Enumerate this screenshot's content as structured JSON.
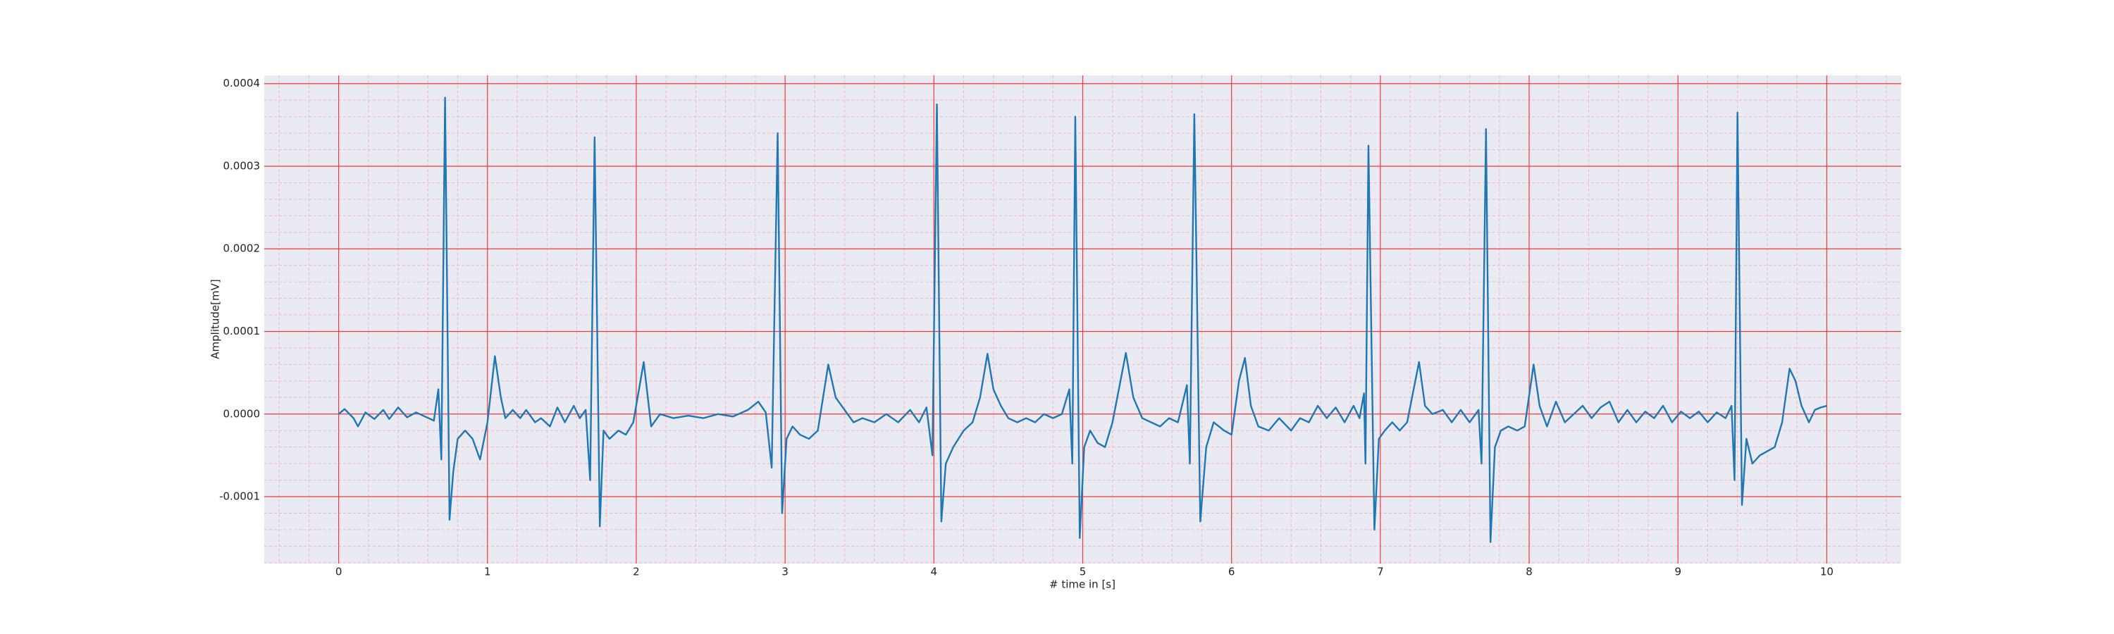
{
  "chart_data": {
    "type": "line",
    "x_label": "# time in [s]",
    "y_label": "Amplitude[mV]",
    "xlim": [
      -0.5,
      10.5
    ],
    "ylim": [
      -0.000181,
      0.00041
    ],
    "xticks": [
      0,
      1,
      2,
      3,
      4,
      5,
      6,
      7,
      8,
      9,
      10
    ],
    "yticks": [
      {
        "value": -0.0001,
        "label": "-0.0001"
      },
      {
        "value": 0,
        "label": "0.0000"
      },
      0.0001,
      0.0002,
      0.0003,
      0.0004
    ],
    "grid": true,
    "minor_grid": true,
    "background": "#eaeaf2",
    "grid_color": "#f03a3a",
    "minor_grid_color": "#f7b3c2",
    "x": [
      0,
      0.04,
      0.1,
      0.13,
      0.18,
      0.24,
      0.3,
      0.34,
      0.4,
      0.46,
      0.52,
      0.58,
      0.64,
      0.67,
      0.69,
      0.715,
      0.745,
      0.77,
      0.8,
      0.85,
      0.9,
      0.95,
      1.0,
      1.05,
      1.09,
      1.12,
      1.17,
      1.22,
      1.26,
      1.32,
      1.36,
      1.42,
      1.47,
      1.52,
      1.58,
      1.62,
      1.66,
      1.69,
      1.72,
      1.755,
      1.78,
      1.82,
      1.88,
      1.93,
      1.98,
      2.05,
      2.1,
      2.16,
      2.25,
      2.35,
      2.45,
      2.55,
      2.65,
      2.75,
      2.82,
      2.87,
      2.91,
      2.95,
      2.98,
      3.01,
      3.05,
      3.1,
      3.16,
      3.22,
      3.29,
      3.34,
      3.4,
      3.46,
      3.52,
      3.6,
      3.68,
      3.76,
      3.84,
      3.9,
      3.95,
      3.99,
      4.02,
      4.05,
      4.08,
      4.13,
      4.2,
      4.26,
      4.31,
      4.36,
      4.4,
      4.45,
      4.5,
      4.56,
      4.62,
      4.68,
      4.74,
      4.8,
      4.86,
      4.91,
      4.93,
      4.95,
      4.98,
      5.01,
      5.05,
      5.1,
      5.15,
      5.2,
      5.29,
      5.34,
      5.4,
      5.46,
      5.52,
      5.58,
      5.64,
      5.7,
      5.72,
      5.75,
      5.79,
      5.83,
      5.88,
      5.95,
      6.0,
      6.05,
      6.09,
      6.13,
      6.18,
      6.25,
      6.32,
      6.4,
      6.46,
      6.52,
      6.58,
      6.64,
      6.7,
      6.76,
      6.82,
      6.86,
      6.89,
      6.9,
      6.92,
      6.96,
      6.99,
      7.03,
      7.08,
      7.13,
      7.18,
      7.26,
      7.3,
      7.35,
      7.42,
      7.48,
      7.54,
      7.6,
      7.66,
      7.68,
      7.71,
      7.74,
      7.77,
      7.81,
      7.86,
      7.92,
      7.97,
      8.03,
      8.07,
      8.12,
      8.18,
      8.24,
      8.3,
      8.36,
      8.42,
      8.48,
      8.54,
      8.6,
      8.66,
      8.72,
      8.78,
      8.84,
      8.9,
      8.96,
      9.02,
      9.08,
      9.14,
      9.2,
      9.26,
      9.32,
      9.36,
      9.38,
      9.4,
      9.43,
      9.46,
      9.5,
      9.55,
      9.6,
      9.65,
      9.7,
      9.75,
      9.79,
      9.83,
      9.88,
      9.92,
      9.96,
      10.0
    ],
    "series": [
      {
        "color": "#1f77b4",
        "values": [
          0,
          6e-06,
          -5e-06,
          -1.5e-05,
          2e-06,
          -6e-06,
          5e-06,
          -6e-06,
          8e-06,
          -4e-06,
          2e-06,
          -3e-06,
          -8e-06,
          3e-05,
          -5.5e-05,
          0.000383,
          -0.000128,
          -7e-05,
          -3e-05,
          -2e-05,
          -3e-05,
          -5.5e-05,
          -1e-05,
          7e-05,
          2e-05,
          -5e-06,
          5e-06,
          -5e-06,
          5e-06,
          -1e-05,
          -5e-06,
          -1.5e-05,
          8e-06,
          -1e-05,
          1e-05,
          -5e-06,
          5e-06,
          -8e-05,
          0.000335,
          -0.000136,
          -2e-05,
          -3e-05,
          -2e-05,
          -2.5e-05,
          -1e-05,
          6.3e-05,
          -1.5e-05,
          0,
          -5e-06,
          -2e-06,
          -5e-06,
          0,
          -3e-06,
          5e-06,
          1.5e-05,
          2e-06,
          -6.5e-05,
          0.00034,
          -0.00012,
          -3e-05,
          -1.5e-05,
          -2.5e-05,
          -3e-05,
          -2e-05,
          6e-05,
          2e-05,
          5e-06,
          -1e-05,
          -5e-06,
          -1e-05,
          0,
          -1e-05,
          5e-06,
          -1e-05,
          8e-06,
          -5e-05,
          0.000375,
          -0.00013,
          -6e-05,
          -4e-05,
          -2e-05,
          -1e-05,
          2e-05,
          7.3e-05,
          3e-05,
          1e-05,
          -5e-06,
          -1e-05,
          -5e-06,
          -1e-05,
          0,
          -5e-06,
          0,
          3e-05,
          -6e-05,
          0.00036,
          -0.00015,
          -4e-05,
          -2e-05,
          -3.5e-05,
          -4e-05,
          -1e-05,
          7.4e-05,
          2e-05,
          -5e-06,
          -1e-05,
          -1.5e-05,
          -5e-06,
          -1e-05,
          3.5e-05,
          -6e-05,
          0.000363,
          -0.00013,
          -4e-05,
          -1e-05,
          -2e-05,
          -2.5e-05,
          4e-05,
          6.8e-05,
          1e-05,
          -1.5e-05,
          -2e-05,
          -5e-06,
          -2e-05,
          -5e-06,
          -1e-05,
          1e-05,
          -5e-06,
          8e-06,
          -1e-05,
          1e-05,
          -5e-06,
          2.5e-05,
          -6e-05,
          0.000325,
          -0.00014,
          -3e-05,
          -2e-05,
          -1e-05,
          -2e-05,
          -1e-05,
          6.3e-05,
          1e-05,
          0,
          5e-06,
          -1e-05,
          5e-06,
          -1e-05,
          5e-06,
          -6e-05,
          0.000345,
          -0.000155,
          -4e-05,
          -2e-05,
          -1.5e-05,
          -2e-05,
          -1.5e-05,
          6e-05,
          1e-05,
          -1.5e-05,
          1.5e-05,
          -1e-05,
          0,
          1e-05,
          -5e-06,
          8e-06,
          1.5e-05,
          -1e-05,
          5e-06,
          -1e-05,
          3e-06,
          -5e-06,
          1e-05,
          -1e-05,
          3e-06,
          -5e-06,
          3e-06,
          -1e-05,
          2e-06,
          -5e-06,
          1e-05,
          -8e-05,
          0.000365,
          -0.00011,
          -3e-05,
          -6e-05,
          -5e-05,
          -4.5e-05,
          -4e-05,
          -1e-05,
          5.5e-05,
          4e-05,
          1e-05,
          -1e-05,
          5e-06,
          8e-06,
          1e-05
        ]
      }
    ]
  }
}
